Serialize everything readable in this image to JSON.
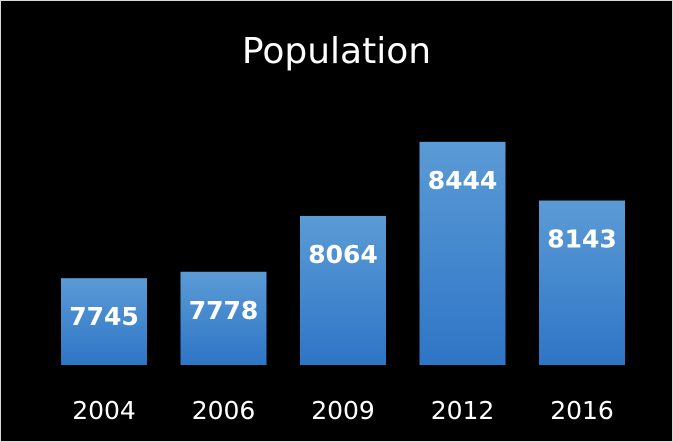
{
  "chart_data": {
    "type": "bar",
    "title": "Population",
    "categories": [
      "2004",
      "2006",
      "2009",
      "2012",
      "2016"
    ],
    "values": [
      7745,
      7778,
      8064,
      8444,
      8143
    ],
    "xlabel": "",
    "ylabel": "",
    "grid": false,
    "legend": "none",
    "colors": {
      "background": "#000000",
      "bar_top": "#5b9bd5",
      "bar_bottom": "#2e75c6",
      "text": "#ffffff",
      "border": "#d9d9d9"
    }
  }
}
